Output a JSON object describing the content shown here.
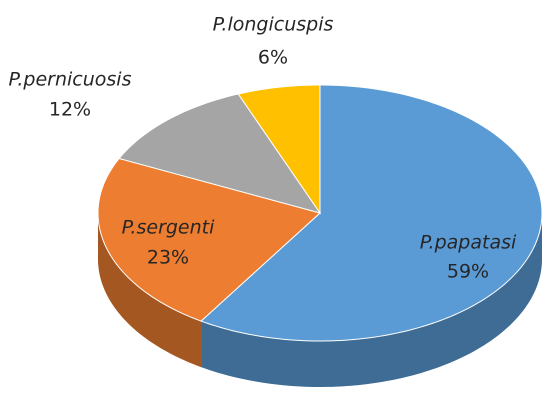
{
  "chart_data": {
    "type": "pie",
    "categories": [
      "P.papatasi",
      "P.sergenti",
      "P.pernicuosis",
      "P.longicuspis"
    ],
    "values": [
      59,
      23,
      12,
      6
    ],
    "value_labels": [
      "59%",
      "23%",
      "12%",
      "6%"
    ],
    "colors": [
      "#5b9bd5",
      "#ed7d31",
      "#a5a5a5",
      "#ffc000"
    ]
  }
}
